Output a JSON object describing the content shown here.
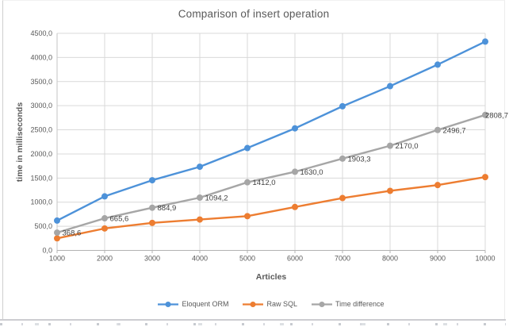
{
  "chart_data": {
    "type": "line",
    "title": "Comparison of insert operation",
    "xlabel": "Articles",
    "ylabel": "time in milliseconds",
    "x": [
      1000,
      2000,
      3000,
      4000,
      5000,
      6000,
      7000,
      8000,
      9000,
      10000
    ],
    "ylim": [
      0,
      4500
    ],
    "y_tick_step": 500,
    "y_tick_labels": [
      "0,0",
      "500,0",
      "1000,0",
      "1500,0",
      "2000,0",
      "2500,0",
      "3000,0",
      "3500,0",
      "4000,0",
      "4500,0"
    ],
    "grid": true,
    "legend_position": "bottom",
    "series": [
      {
        "name": "Eloquent ORM",
        "color": "#4D92D9",
        "values": [
          618.6,
          1120.6,
          1454.9,
          1734.2,
          2122.0,
          2530.0,
          2988.3,
          3405.0,
          3851.7,
          4328.7
        ]
      },
      {
        "name": "Raw SQL",
        "color": "#ED7D31",
        "values": [
          250.0,
          455.0,
          570.0,
          640.0,
          710.0,
          900.0,
          1085.0,
          1235.0,
          1355.0,
          1520.0
        ]
      },
      {
        "name": "Time difference",
        "color": "#A6A6A6",
        "values": [
          368.6,
          665.6,
          884.9,
          1094.2,
          1412.0,
          1630.0,
          1903.3,
          2170.0,
          2496.7,
          2808.7
        ],
        "labels": [
          "368,6",
          "665,6",
          "884,9",
          "1094,2",
          "1412,0",
          "1630,0",
          "1903,3",
          "2170,0",
          "2496,7",
          "2808,7"
        ]
      }
    ],
    "colors": {
      "gridline": "#d9d9d9",
      "axis_line": "#b3b3b3",
      "title_text": "#595959",
      "tick_text": "#595959",
      "data_label_text": "#404040"
    }
  }
}
